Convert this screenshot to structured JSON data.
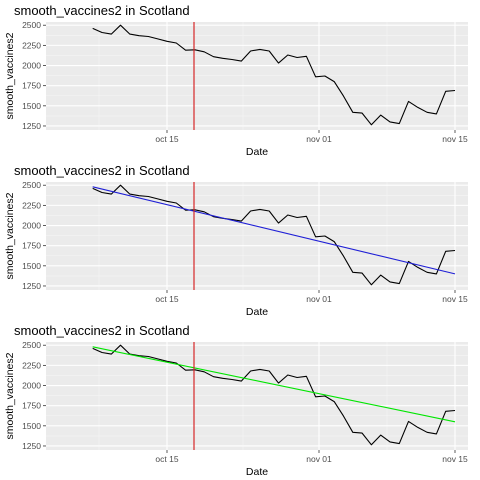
{
  "chart_data": [
    {
      "type": "line",
      "title": "smooth_vaccines2 in Scotland",
      "xlabel": "Date",
      "ylabel": "smooth_vaccines2",
      "x_ticks": [
        "oct 15",
        "nov 01",
        "nov 15"
      ],
      "y_ticks": [
        "1250",
        "1500",
        "1750",
        "2000",
        "2250",
        "2500"
      ],
      "ylim": [
        1200,
        2540
      ],
      "xlim_days": [
        -8.5,
        15.5
      ],
      "vline": {
        "day": -13,
        "color": "#d62728"
      },
      "trend": null,
      "series": [
        {
          "color": "#000000",
          "x": [
            "2021-10-07",
            "2021-10-08",
            "2021-10-09",
            "2021-10-10",
            "2021-10-11",
            "2021-10-12",
            "2021-10-13",
            "2021-10-14",
            "2021-10-15",
            "2021-10-16",
            "2021-10-17",
            "2021-10-18",
            "2021-10-19",
            "2021-10-20",
            "2021-10-21",
            "2021-10-22",
            "2021-10-23",
            "2021-10-24",
            "2021-10-25",
            "2021-10-26",
            "2021-10-27",
            "2021-10-28",
            "2021-10-29",
            "2021-10-30",
            "2021-10-31",
            "2021-11-01",
            "2021-11-02",
            "2021-11-03",
            "2021-11-04",
            "2021-11-05",
            "2021-11-06",
            "2021-11-07",
            "2021-11-08",
            "2021-11-09",
            "2021-11-10",
            "2021-11-11",
            "2021-11-12",
            "2021-11-13",
            "2021-11-14",
            "2021-11-15"
          ],
          "values": [
            2460,
            2410,
            2390,
            2500,
            2390,
            2370,
            2360,
            2330,
            2300,
            2280,
            2190,
            2195,
            2170,
            2110,
            2090,
            2075,
            2055,
            2180,
            2200,
            2180,
            2030,
            2130,
            2100,
            2115,
            1860,
            1870,
            1800,
            1620,
            1420,
            1410,
            1265,
            1385,
            1300,
            1280,
            1555,
            1480,
            1420,
            1400,
            1680,
            1690
          ]
        }
      ]
    },
    {
      "type": "line",
      "title": "smooth_vaccines2 in Scotland",
      "xlabel": "Date",
      "ylabel": "smooth_vaccines2",
      "x_ticks": [
        "oct 15",
        "nov 01",
        "nov 15"
      ],
      "y_ticks": [
        "1250",
        "1500",
        "1750",
        "2000",
        "2250",
        "2500"
      ],
      "ylim": [
        1200,
        2540
      ],
      "vline": {
        "color": "#d62728"
      },
      "trend": {
        "color": "#1f1fd6",
        "start": 2480,
        "end": 1400
      },
      "series": [
        {
          "color": "#000000",
          "x": [
            "2021-10-07",
            "2021-10-08",
            "2021-10-09",
            "2021-10-10",
            "2021-10-11",
            "2021-10-12",
            "2021-10-13",
            "2021-10-14",
            "2021-10-15",
            "2021-10-16",
            "2021-10-17",
            "2021-10-18",
            "2021-10-19",
            "2021-10-20",
            "2021-10-21",
            "2021-10-22",
            "2021-10-23",
            "2021-10-24",
            "2021-10-25",
            "2021-10-26",
            "2021-10-27",
            "2021-10-28",
            "2021-10-29",
            "2021-10-30",
            "2021-10-31",
            "2021-11-01",
            "2021-11-02",
            "2021-11-03",
            "2021-11-04",
            "2021-11-05",
            "2021-11-06",
            "2021-11-07",
            "2021-11-08",
            "2021-11-09",
            "2021-11-10",
            "2021-11-11",
            "2021-11-12",
            "2021-11-13",
            "2021-11-14",
            "2021-11-15"
          ],
          "values": [
            2460,
            2410,
            2390,
            2500,
            2390,
            2370,
            2360,
            2330,
            2300,
            2280,
            2190,
            2195,
            2170,
            2110,
            2090,
            2075,
            2055,
            2180,
            2200,
            2180,
            2030,
            2130,
            2100,
            2115,
            1860,
            1870,
            1800,
            1620,
            1420,
            1410,
            1265,
            1385,
            1300,
            1280,
            1555,
            1480,
            1420,
            1400,
            1680,
            1690
          ]
        }
      ]
    },
    {
      "type": "line",
      "title": "smooth_vaccines2 in Scotland",
      "xlabel": "Date",
      "ylabel": "smooth_vaccines2",
      "x_ticks": [
        "oct 15",
        "nov 01",
        "nov 15"
      ],
      "y_ticks": [
        "1250",
        "1500",
        "1750",
        "2000",
        "2250",
        "2500"
      ],
      "ylim": [
        1200,
        2540
      ],
      "vline": {
        "color": "#d62728"
      },
      "trend": {
        "color": "#00e600",
        "start": 2480,
        "end": 1550
      },
      "series": [
        {
          "color": "#000000",
          "x": [
            "2021-10-07",
            "2021-10-08",
            "2021-10-09",
            "2021-10-10",
            "2021-10-11",
            "2021-10-12",
            "2021-10-13",
            "2021-10-14",
            "2021-10-15",
            "2021-10-16",
            "2021-10-17",
            "2021-10-18",
            "2021-10-19",
            "2021-10-20",
            "2021-10-21",
            "2021-10-22",
            "2021-10-23",
            "2021-10-24",
            "2021-10-25",
            "2021-10-26",
            "2021-10-27",
            "2021-10-28",
            "2021-10-29",
            "2021-10-30",
            "2021-10-31",
            "2021-11-01",
            "2021-11-02",
            "2021-11-03",
            "2021-11-04",
            "2021-11-05",
            "2021-11-06",
            "2021-11-07",
            "2021-11-08",
            "2021-11-09",
            "2021-11-10",
            "2021-11-11",
            "2021-11-12",
            "2021-11-13",
            "2021-11-14",
            "2021-11-15"
          ],
          "values": [
            2460,
            2410,
            2390,
            2500,
            2390,
            2370,
            2360,
            2330,
            2300,
            2280,
            2190,
            2195,
            2170,
            2110,
            2090,
            2075,
            2055,
            2180,
            2200,
            2180,
            2030,
            2130,
            2100,
            2115,
            1860,
            1870,
            1800,
            1620,
            1420,
            1410,
            1265,
            1385,
            1300,
            1280,
            1555,
            1480,
            1420,
            1400,
            1680,
            1690
          ]
        }
      ]
    }
  ]
}
